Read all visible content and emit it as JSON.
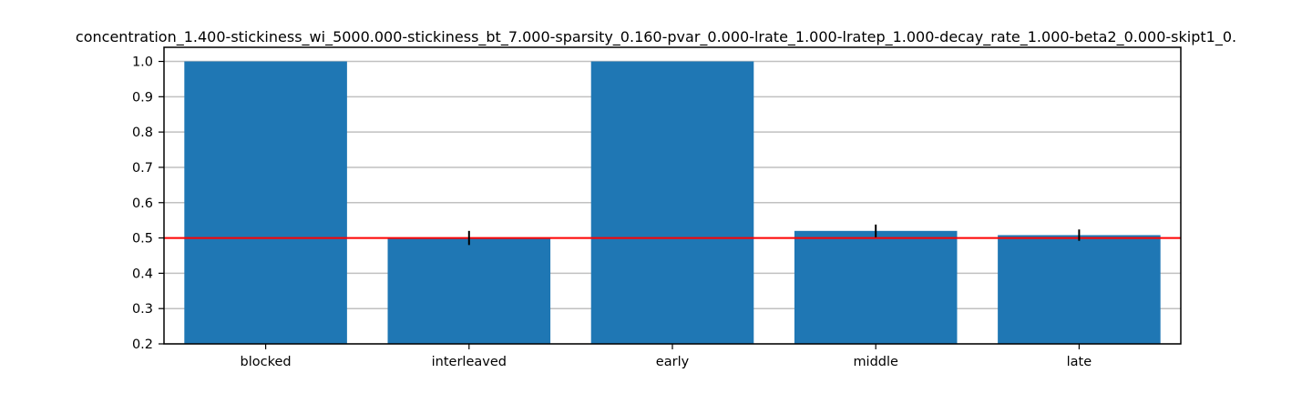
{
  "chart_data": {
    "type": "bar",
    "title": "concentration_1.400-stickiness_wi_5000.000-stickiness_bt_7.000-sparsity_0.160-pvar_0.000-lrate_1.000-lratep_1.000-decay_rate_1.000-beta2_0.000-skipt1_0.",
    "xlabel": "",
    "ylabel": "",
    "categories": [
      "blocked",
      "interleaved",
      "early",
      "middle",
      "late"
    ],
    "values": [
      1.0,
      0.5,
      1.0,
      0.52,
      0.508
    ],
    "errors": [
      0.0,
      0.02,
      0.0,
      0.018,
      0.016
    ],
    "ylim": [
      0.2,
      1.04
    ],
    "yticks": [
      0.2,
      0.3,
      0.4,
      0.5,
      0.6,
      0.7,
      0.8,
      0.9,
      1.0
    ],
    "ytick_labels": [
      "0.2",
      "0.3",
      "0.4",
      "0.5",
      "0.6",
      "0.7",
      "0.8",
      "0.9",
      "1.0"
    ],
    "reference_line": 0.5,
    "grid": "y-major",
    "colors": {
      "bar": "#1f77b4",
      "reference_line": "#ff0000",
      "grid": "#c0c0c0",
      "errorbar": "#000000"
    }
  }
}
